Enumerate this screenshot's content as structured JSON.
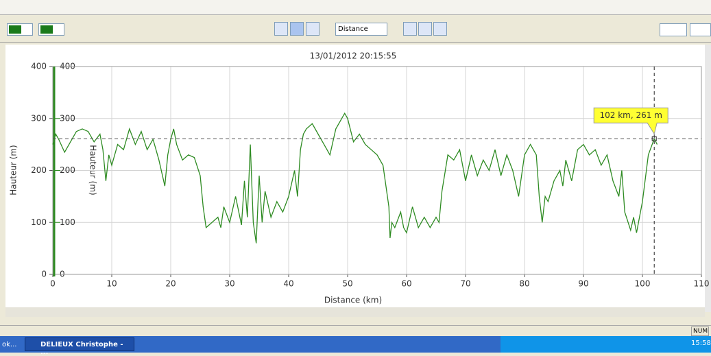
{
  "ui": {
    "toolbar_select": "Distance",
    "status": "NUM",
    "taskbar": {
      "left": "ok...",
      "window": "DELIEUX Christophe - ...",
      "clock": "15:58"
    }
  },
  "chart_data": {
    "type": "line",
    "title": "13/01/2012 20:15:55",
    "x_label": "Distance (km)",
    "y_label": "Hauteur (m)",
    "color": "#2e8b22",
    "grid": true,
    "xlim": [
      0,
      110
    ],
    "ylim": [
      0,
      400
    ],
    "xticks": [
      0,
      10,
      20,
      30,
      40,
      50,
      60,
      70,
      80,
      90,
      100,
      110
    ],
    "yticks": [
      0,
      100,
      200,
      300,
      400
    ],
    "x": [
      0,
      0.5,
      1,
      2,
      3,
      4,
      5,
      6,
      7,
      8,
      8.5,
      9,
      9.5,
      10,
      11,
      12,
      13,
      14,
      15,
      16,
      17,
      18,
      19,
      19.5,
      20,
      20.5,
      21,
      22,
      23,
      24,
      25,
      25.5,
      26,
      27,
      28,
      28.5,
      29,
      30,
      31,
      32,
      32.5,
      33,
      33.5,
      34,
      34.5,
      35,
      35.5,
      36,
      37,
      38,
      39,
      40,
      41,
      41.5,
      42,
      42.5,
      43,
      44,
      45,
      46,
      47,
      48,
      49,
      49.5,
      50,
      51,
      52,
      53,
      54,
      55,
      56,
      57,
      57.2,
      57.5,
      58,
      59,
      59.5,
      60,
      61,
      62,
      63,
      64,
      65,
      65.5,
      66,
      67,
      68,
      69,
      70,
      71,
      72,
      73,
      74,
      75,
      76,
      77,
      78,
      79,
      80,
      81,
      82,
      82.5,
      83,
      83.5,
      84,
      85,
      86,
      86.5,
      87,
      88,
      89,
      90,
      91,
      92,
      93,
      94,
      95,
      96,
      96.5,
      97,
      98,
      98.5,
      99,
      100,
      101,
      102,
      102.5
    ],
    "values": [
      250,
      270,
      260,
      235,
      255,
      275,
      280,
      275,
      255,
      270,
      240,
      180,
      230,
      210,
      250,
      240,
      280,
      250,
      275,
      240,
      260,
      220,
      170,
      230,
      260,
      280,
      250,
      220,
      230,
      225,
      190,
      130,
      90,
      100,
      110,
      90,
      130,
      100,
      150,
      95,
      180,
      110,
      250,
      100,
      60,
      190,
      100,
      160,
      110,
      140,
      120,
      150,
      200,
      150,
      240,
      270,
      280,
      290,
      270,
      250,
      230,
      280,
      300,
      310,
      300,
      255,
      270,
      250,
      240,
      230,
      210,
      130,
      70,
      100,
      90,
      120,
      90,
      80,
      130,
      90,
      110,
      90,
      110,
      100,
      160,
      230,
      220,
      240,
      180,
      230,
      190,
      220,
      200,
      240,
      190,
      230,
      200,
      150,
      230,
      250,
      230,
      150,
      100,
      150,
      140,
      180,
      200,
      170,
      220,
      180,
      240,
      250,
      230,
      240,
      210,
      230,
      180,
      150,
      200,
      120,
      85,
      110,
      80,
      140,
      230,
      261,
      250
    ],
    "cursor": {
      "x": 102,
      "y": 261,
      "label": "102 km, 261 m"
    }
  }
}
